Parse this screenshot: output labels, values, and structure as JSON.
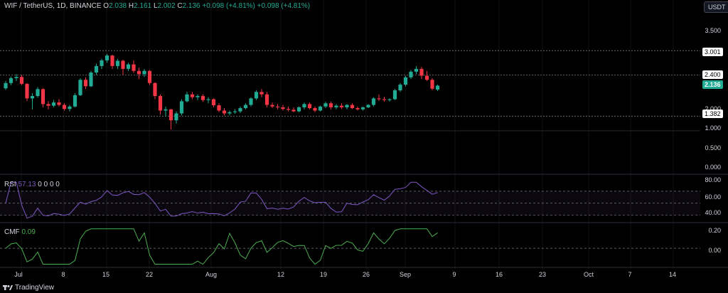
{
  "legend": {
    "symbol": "WIF / TetherUS, 1D, BINANCE",
    "o_label": "O",
    "o": "2.038",
    "h_label": "H",
    "h": "2.161",
    "l_label": "L",
    "l": "2.002",
    "c_label": "C",
    "c": "2.136",
    "change": "+0.098 (+4.81%)",
    "change2": "+0.098 (+4.81%)"
  },
  "currency_button": "USDT",
  "price_axis": [
    "3.500",
    "3.001",
    "2.400",
    "2.136",
    "2.000",
    "1.382",
    "1.000",
    "0.500",
    "0.000"
  ],
  "tags": {
    "t1": "3.001",
    "t2": "2.400",
    "current": "2.136",
    "t3": "1.382"
  },
  "rsi": {
    "label": "RSI",
    "value": "57.13",
    "extra": "0 0 0 0",
    "axis": [
      "80.00",
      "60.00",
      "40.00"
    ]
  },
  "cmf": {
    "label": "CMF",
    "value": "0.09",
    "axis": [
      "0.20",
      "0.00"
    ]
  },
  "time_axis": [
    "Jul",
    "8",
    "15",
    "22",
    "Aug",
    "12",
    "19",
    "26",
    "Sep",
    "9",
    "16",
    "23",
    "Oct",
    "7",
    "14"
  ],
  "footer": {
    "brand": "TradingView"
  },
  "colors": {
    "up": "#22ab94",
    "down": "#f23645",
    "rsi": "#7e57c2",
    "cmf": "#4caf50"
  },
  "chart_data": {
    "type": "candlestick",
    "symbol": "WIF / TetherUS",
    "interval": "1D",
    "y_range": [
      0,
      3.9
    ],
    "levels": [
      3.001,
      2.4,
      1.382
    ],
    "candles": [
      [
        2.07,
        2.25,
        2.03,
        2.2
      ],
      [
        2.2,
        2.36,
        2.15,
        2.32
      ],
      [
        2.32,
        2.42,
        2.25,
        2.35
      ],
      [
        2.35,
        2.4,
        2.15,
        2.18
      ],
      [
        2.18,
        2.2,
        1.75,
        1.82
      ],
      [
        1.82,
        1.95,
        1.55,
        1.88
      ],
      [
        1.88,
        2.1,
        1.84,
        2.05
      ],
      [
        2.05,
        2.07,
        1.6,
        1.68
      ],
      [
        1.68,
        1.75,
        1.55,
        1.64
      ],
      [
        1.64,
        1.78,
        1.6,
        1.72
      ],
      [
        1.72,
        1.8,
        1.62,
        1.66
      ],
      [
        1.66,
        1.7,
        1.52,
        1.56
      ],
      [
        1.56,
        1.66,
        1.5,
        1.62
      ],
      [
        1.62,
        1.95,
        1.6,
        1.9
      ],
      [
        1.9,
        2.32,
        1.88,
        2.28
      ],
      [
        2.28,
        2.34,
        2.05,
        2.12
      ],
      [
        2.12,
        2.5,
        2.1,
        2.46
      ],
      [
        2.46,
        2.68,
        2.4,
        2.62
      ],
      [
        2.62,
        2.8,
        2.55,
        2.76
      ],
      [
        2.76,
        2.92,
        2.7,
        2.88
      ],
      [
        2.88,
        2.9,
        2.55,
        2.62
      ],
      [
        2.62,
        2.8,
        2.55,
        2.75
      ],
      [
        2.75,
        2.78,
        2.4,
        2.55
      ],
      [
        2.55,
        2.7,
        2.5,
        2.66
      ],
      [
        2.66,
        2.76,
        2.45,
        2.5
      ],
      [
        2.5,
        2.58,
        2.3,
        2.42
      ],
      [
        2.42,
        2.55,
        2.35,
        2.5
      ],
      [
        2.5,
        2.52,
        2.15,
        2.2
      ],
      [
        2.2,
        2.22,
        1.8,
        1.88
      ],
      [
        1.88,
        1.92,
        1.42,
        1.52
      ],
      [
        1.52,
        1.62,
        1.38,
        1.55
      ],
      [
        1.55,
        1.56,
        1.05,
        1.28
      ],
      [
        1.28,
        1.5,
        1.2,
        1.45
      ],
      [
        1.45,
        1.8,
        1.4,
        1.75
      ],
      [
        1.75,
        1.98,
        1.72,
        1.92
      ],
      [
        1.92,
        1.98,
        1.8,
        1.85
      ],
      [
        1.85,
        1.92,
        1.78,
        1.88
      ],
      [
        1.88,
        1.92,
        1.74,
        1.78
      ],
      [
        1.78,
        1.85,
        1.7,
        1.8
      ],
      [
        1.8,
        1.82,
        1.6,
        1.65
      ],
      [
        1.65,
        1.7,
        1.48,
        1.52
      ],
      [
        1.52,
        1.58,
        1.4,
        1.45
      ],
      [
        1.45,
        1.52,
        1.4,
        1.48
      ],
      [
        1.48,
        1.55,
        1.44,
        1.5
      ],
      [
        1.5,
        1.62,
        1.46,
        1.58
      ],
      [
        1.58,
        1.7,
        1.55,
        1.66
      ],
      [
        1.66,
        1.85,
        1.62,
        1.82
      ],
      [
        1.82,
        2.02,
        1.78,
        1.98
      ],
      [
        1.98,
        2.05,
        1.85,
        1.92
      ],
      [
        1.92,
        1.98,
        1.6,
        1.66
      ],
      [
        1.66,
        1.72,
        1.58,
        1.62
      ],
      [
        1.62,
        1.68,
        1.55,
        1.6
      ],
      [
        1.6,
        1.66,
        1.52,
        1.56
      ],
      [
        1.56,
        1.62,
        1.5,
        1.54
      ],
      [
        1.54,
        1.6,
        1.48,
        1.5
      ],
      [
        1.5,
        1.62,
        1.48,
        1.6
      ],
      [
        1.6,
        1.72,
        1.55,
        1.68
      ],
      [
        1.68,
        1.72,
        1.55,
        1.58
      ],
      [
        1.58,
        1.62,
        1.48,
        1.52
      ],
      [
        1.52,
        1.64,
        1.5,
        1.62
      ],
      [
        1.62,
        1.74,
        1.58,
        1.7
      ],
      [
        1.7,
        1.74,
        1.55,
        1.6
      ],
      [
        1.6,
        1.68,
        1.55,
        1.64
      ],
      [
        1.64,
        1.7,
        1.56,
        1.6
      ],
      [
        1.6,
        1.68,
        1.55,
        1.66
      ],
      [
        1.66,
        1.7,
        1.56,
        1.58
      ],
      [
        1.58,
        1.62,
        1.52,
        1.55
      ],
      [
        1.55,
        1.62,
        1.52,
        1.6
      ],
      [
        1.6,
        1.68,
        1.58,
        1.66
      ],
      [
        1.66,
        1.85,
        1.62,
        1.82
      ],
      [
        1.82,
        1.92,
        1.76,
        1.8
      ],
      [
        1.8,
        1.86,
        1.74,
        1.78
      ],
      [
        1.78,
        1.82,
        1.74,
        1.8
      ],
      [
        1.8,
        2.05,
        1.78,
        2.02
      ],
      [
        2.02,
        2.2,
        1.98,
        2.16
      ],
      [
        2.16,
        2.38,
        2.12,
        2.34
      ],
      [
        2.34,
        2.52,
        2.3,
        2.48
      ],
      [
        2.48,
        2.62,
        2.42,
        2.55
      ],
      [
        2.55,
        2.6,
        2.3,
        2.38
      ],
      [
        2.38,
        2.5,
        2.25,
        2.28
      ],
      [
        2.28,
        2.32,
        2.02,
        2.06
      ],
      [
        2.038,
        2.161,
        2.002,
        2.136
      ]
    ]
  }
}
